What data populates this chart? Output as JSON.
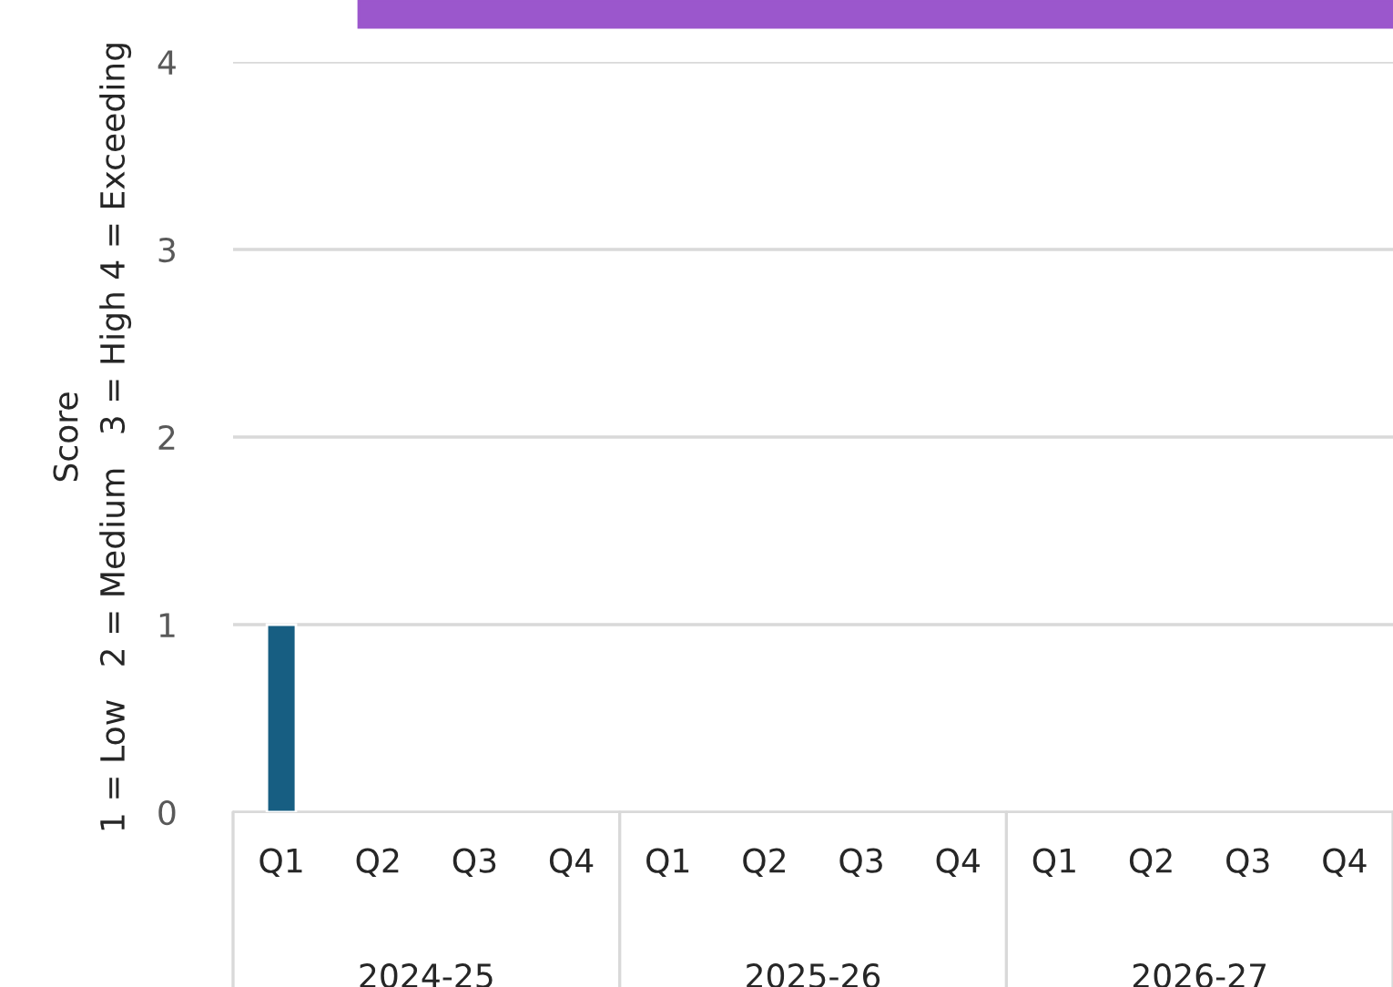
{
  "chart_data": {
    "type": "bar",
    "ylabel": "Score\n1 = Low   2 = Medium   3 = High 4 = Exceeding",
    "categories": [
      "Q1",
      "Q2",
      "Q3",
      "Q4",
      "Q1",
      "Q2",
      "Q3",
      "Q4",
      "Q1",
      "Q2",
      "Q3",
      "Q4"
    ],
    "values": [
      1,
      null,
      null,
      null,
      null,
      null,
      null,
      null,
      null,
      null,
      null,
      null
    ],
    "color": "#175e82",
    "ylim": [
      0,
      4
    ],
    "yticks": [
      0,
      1,
      2,
      3,
      4
    ],
    "grid": "y",
    "annotations": [
      "2024-25",
      "2025-26",
      "2026-27"
    ]
  }
}
